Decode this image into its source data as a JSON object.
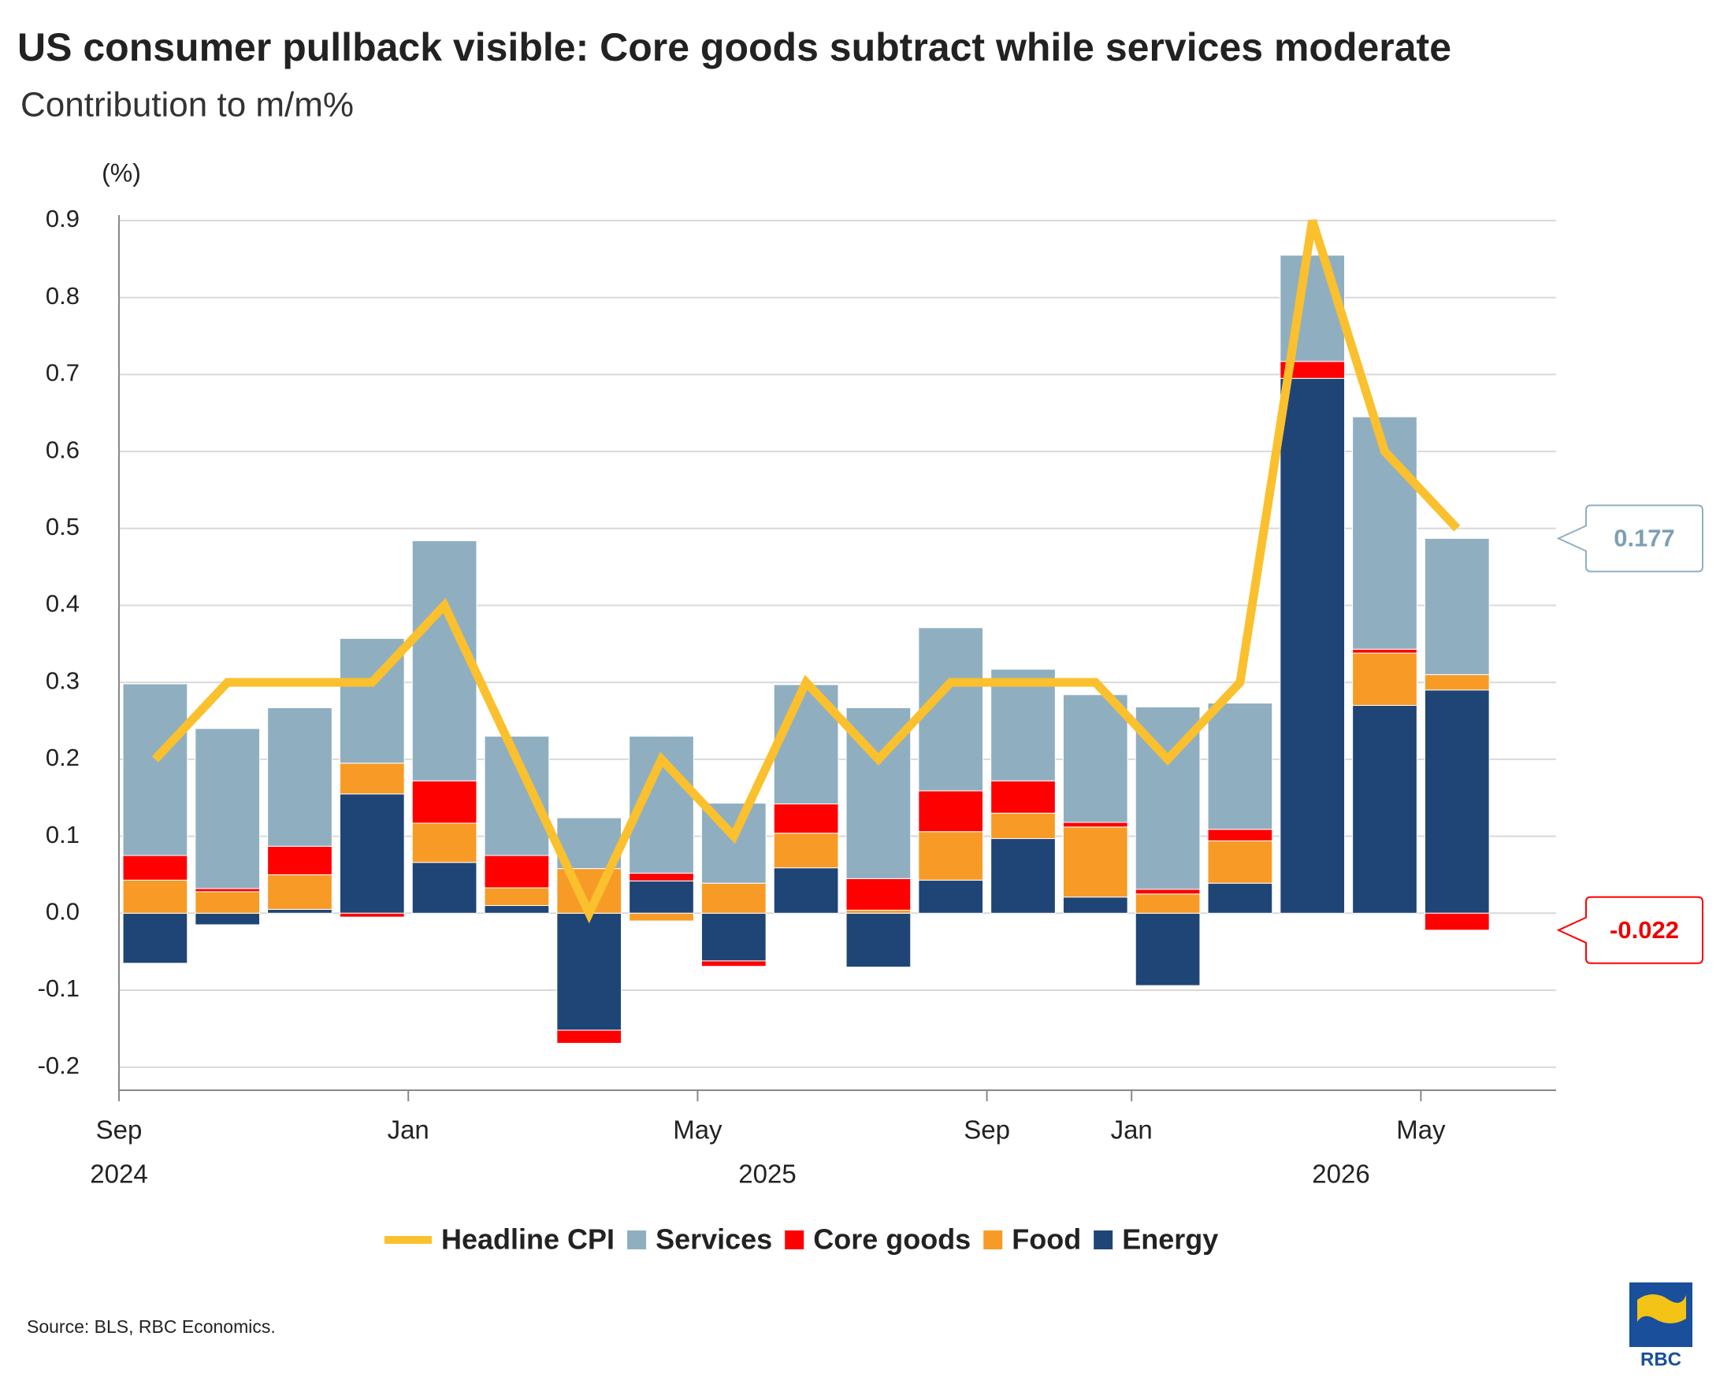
{
  "chart_data": {
    "type": "bar",
    "stacked": true,
    "title": "US consumer pullback visible: Core goods subtract while services moderate",
    "subtitle": "Contribution to m/m%",
    "y_axis_label": "(%)",
    "source": "Source: BLS, RBC Economics.",
    "logo": "RBC",
    "categories": [
      "Sep",
      null,
      null,
      null,
      "Jan",
      null,
      null,
      null,
      "May",
      null,
      null,
      null,
      "Sep",
      null,
      "Jan",
      null,
      null,
      null,
      "May"
    ],
    "year_labels": [
      "2024",
      "2025",
      "2026"
    ],
    "ylim": [
      -0.23,
      0.9
    ],
    "yticks": [
      -0.2,
      -0.1,
      {
        "value": 0,
        "label": "0.0"
      },
      0.1,
      0.2,
      0.3,
      0.4,
      0.5,
      0.6,
      0.7,
      0.8,
      0.9
    ],
    "grid": true,
    "legend": "bottom",
    "series": [
      {
        "name": "Headline CPI",
        "type": "line",
        "color": "#fbc02d",
        "values": [
          0.2,
          0.3,
          0.3,
          0.3,
          0.4,
          0.2,
          0.0,
          0.2,
          0.1,
          0.3,
          0.2,
          0.3,
          0.3,
          0.3,
          0.2,
          0.3,
          0.9,
          0.6,
          0.5
        ]
      },
      {
        "name": "Services",
        "type": "bar",
        "color": "#8fafc1",
        "values": [
          0.223,
          0.208,
          0.18,
          0.162,
          0.312,
          0.155,
          0.066,
          0.178,
          0.104,
          0.155,
          0.222,
          0.212,
          0.145,
          0.166,
          0.237,
          0.164,
          0.138,
          0.302,
          0.177
        ]
      },
      {
        "name": "Core goods",
        "type": "bar",
        "color": "#ff0000",
        "values": [
          0.032,
          0.004,
          0.037,
          -0.005,
          0.055,
          0.042,
          -0.017,
          0.01,
          -0.007,
          0.038,
          0.041,
          0.053,
          0.042,
          0.006,
          0.006,
          0.015,
          0.022,
          0.005,
          -0.022
        ]
      },
      {
        "name": "Food",
        "type": "bar",
        "color": "#f79b26",
        "values": [
          0.043,
          0.028,
          0.045,
          0.04,
          0.051,
          0.023,
          0.058,
          -0.01,
          0.039,
          0.045,
          0.004,
          0.063,
          0.033,
          0.091,
          0.025,
          0.055,
          0,
          0.068,
          0.02
        ]
      },
      {
        "name": "Energy",
        "type": "bar",
        "color": "#1f4577",
        "values": [
          -0.065,
          -0.015,
          0.005,
          0.155,
          0.066,
          0.01,
          -0.152,
          0.042,
          -0.062,
          0.059,
          -0.07,
          0.043,
          0.097,
          0.021,
          -0.094,
          0.039,
          0.695,
          0.27,
          0.29
        ]
      }
    ]
  }
}
